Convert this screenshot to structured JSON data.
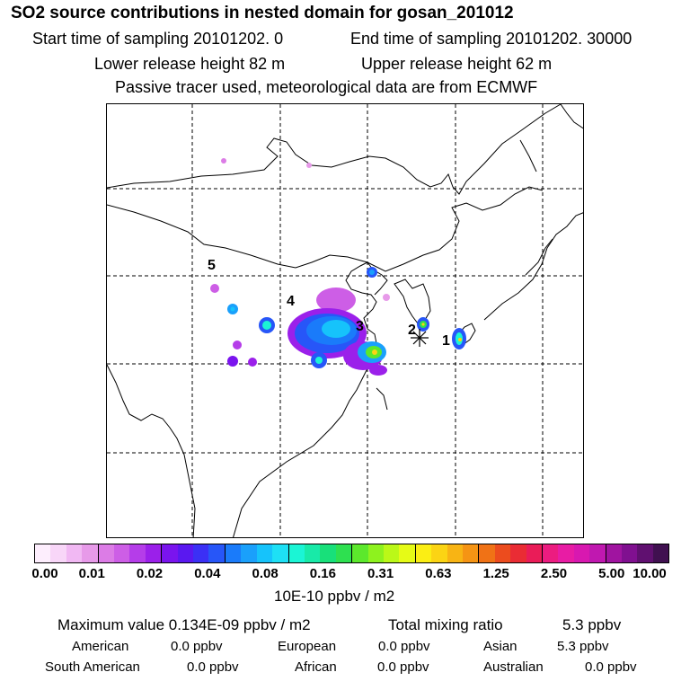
{
  "title": "SO2 source contributions in nested domain for gosan_201012",
  "header": {
    "start_label": "Start time of sampling 20101202.     0",
    "end_label": "End time of sampling 20101202. 30000",
    "lower_label": "Lower release height   82 m",
    "upper_label": "Upper release height   62 m",
    "note": "Passive tracer used, meteorological data are from ECMWF"
  },
  "map": {
    "markers": [
      "1",
      "2",
      "3",
      "4",
      "5"
    ],
    "receptor_symbol": "asterisk-icon"
  },
  "colorbar": {
    "colors": [
      "#fdeefd",
      "#f8d6f8",
      "#f1b8f3",
      "#e79ae9",
      "#dc7ce6",
      "#cd5ee6",
      "#b53de9",
      "#9b20ea",
      "#7a14ee",
      "#5a18f0",
      "#3b30f5",
      "#2756f8",
      "#1a7bfa",
      "#1aa0fb",
      "#16c3fb",
      "#1ee0f5",
      "#1bf5d5",
      "#18eaa8",
      "#18e07a",
      "#2ee050",
      "#5ce82c",
      "#8ef21e",
      "#bbf818",
      "#e6fb16",
      "#fbee14",
      "#fbd414",
      "#f8b414",
      "#f59414",
      "#f07216",
      "#ec4c1e",
      "#ea2c34",
      "#ea1c58",
      "#ec1c80",
      "#e81ca4",
      "#d818b0",
      "#c018b0",
      "#a014a0",
      "#801090",
      "#601070",
      "#401050"
    ],
    "ticks": [
      "0.00",
      "0.01",
      "0.02",
      "0.04",
      "0.08",
      "0.16",
      "0.31",
      "0.63",
      "1.25",
      "2.50",
      "5.00",
      "10.00"
    ],
    "unit": "10E-10 ppbv / m2"
  },
  "summary": {
    "max_value": "Maximum value  0.134E-09 ppbv / m2",
    "total_label": "Total mixing ratio",
    "total_value": "5.3 ppbv"
  },
  "regions": [
    {
      "name": "American",
      "value": "0.0 ppbv"
    },
    {
      "name": "European",
      "value": "0.0 ppbv"
    },
    {
      "name": "Asian",
      "value": "5.3 ppbv"
    },
    {
      "name": "South American",
      "value": "0.0 ppbv"
    },
    {
      "name": "African",
      "value": "0.0 ppbv"
    },
    {
      "name": "Australian",
      "value": "0.0 ppbv"
    }
  ]
}
